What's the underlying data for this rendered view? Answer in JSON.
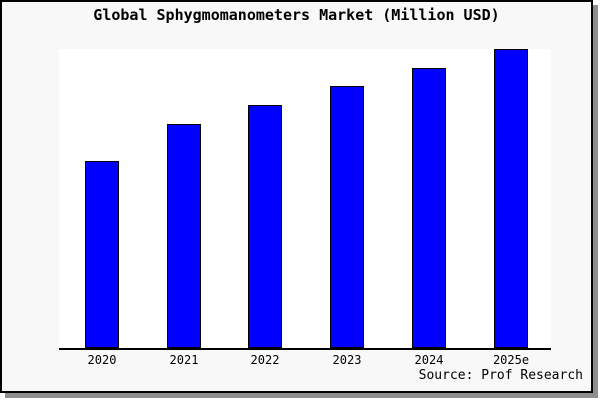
{
  "card": {
    "background": "#f8f8f8",
    "border_color": "#000000",
    "shadow_color": "#8e8e8e"
  },
  "title": "Global Sphygmomanometers Market (Million USD)",
  "source_credit": "Source: Prof Research",
  "chart_data": {
    "type": "bar",
    "title": "Global Sphygmomanometers Market (Million USD)",
    "categories": [
      "2020",
      "2021",
      "2022",
      "2023",
      "2024",
      "2025e"
    ],
    "values": [
      187,
      224,
      243,
      262,
      280,
      299
    ],
    "note": "Y-axis has no tick labels or gridlines; values are relative magnitudes estimated from bar pixel heights.",
    "xlabel": "",
    "ylabel": "",
    "ylim": [
      0,
      299
    ],
    "grid": false,
    "legend": false,
    "bar_color": "#0000ff",
    "bar_border_color": "#000000",
    "plot_background": "#ffffff",
    "annotations": [
      "Source: Prof Research"
    ]
  }
}
